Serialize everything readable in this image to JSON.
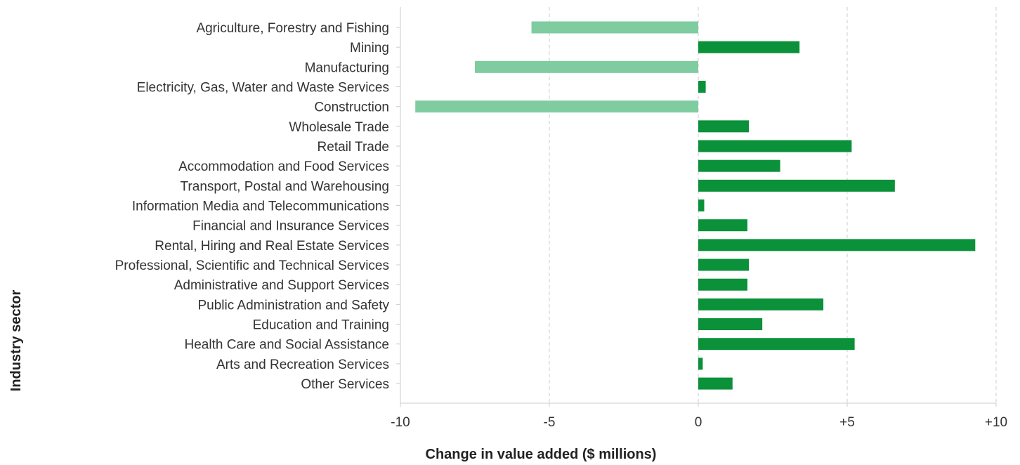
{
  "chart_data": {
    "type": "bar",
    "orientation": "horizontal",
    "title": "",
    "xlabel": "Change in value added ($ millions)",
    "ylabel": "Industry sector",
    "xlim": [
      -10,
      10
    ],
    "x_ticks": [
      -10,
      -5,
      0,
      5,
      10
    ],
    "x_tick_labels": [
      "-10",
      "-5",
      "0",
      "+5",
      "+10"
    ],
    "grid": "vertical dashed",
    "legend": "none",
    "colors": {
      "positive": "#0a9139",
      "negative": "#7fcca0",
      "grid": "#cccccc",
      "axis": "#cccccc"
    },
    "categories": [
      "Agriculture, Forestry and Fishing",
      "Mining",
      "Manufacturing",
      "Electricity, Gas, Water and Waste Services",
      "Construction",
      "Wholesale Trade",
      "Retail Trade",
      "Accommodation and Food Services",
      "Transport, Postal and Warehousing",
      "Information Media and Telecommunications",
      "Financial and Insurance Services",
      "Rental, Hiring and Real Estate Services",
      "Professional, Scientific and Technical Services",
      "Administrative and Support Services",
      "Public Administration and Safety",
      "Education and Training",
      "Health Care and Social Assistance",
      "Arts and Recreation Services",
      "Other Services"
    ],
    "values": [
      -5.6,
      3.4,
      -7.5,
      0.25,
      -9.5,
      1.7,
      5.15,
      2.75,
      6.6,
      0.2,
      1.65,
      9.3,
      1.7,
      1.65,
      4.2,
      2.15,
      5.25,
      0.15,
      1.15
    ]
  }
}
